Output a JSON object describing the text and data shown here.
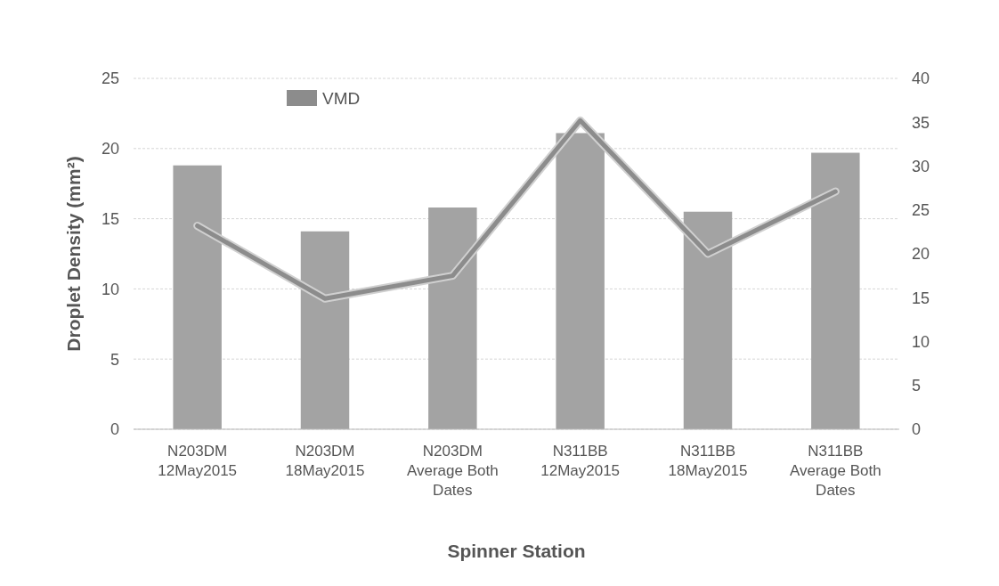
{
  "chart_data": {
    "type": "bar",
    "xlabel": "Spinner Station",
    "ylabel": "Droplet Density (mm²)",
    "categories": [
      "N203DM 12May2015",
      "N203DM 18May2015",
      "N203DM Average Both Dates",
      "N311BB 12May2015",
      "N311BB 18May2015",
      "N311BB Average Both Dates"
    ],
    "series": [
      {
        "color": "#a3a3a3",
        "values": [
          18.8,
          14.1,
          15.8,
          21.1,
          15.5,
          19.7
        ]
      },
      {
        "type": "line",
        "name": "VMD",
        "axis": "y2",
        "color": "#8c8c8c",
        "values": [
          23.2,
          14.9,
          17.5,
          35.2,
          20.0,
          27.1
        ]
      }
    ],
    "ylim": [
      0,
      25
    ],
    "yticks": [
      0,
      5,
      10,
      15,
      20,
      25
    ],
    "y2lim": [
      0,
      40
    ],
    "y2ticks": [
      0,
      5,
      10,
      15,
      20,
      25,
      30,
      35,
      40
    ],
    "grid": "y",
    "legend": "top",
    "marker": "none"
  }
}
